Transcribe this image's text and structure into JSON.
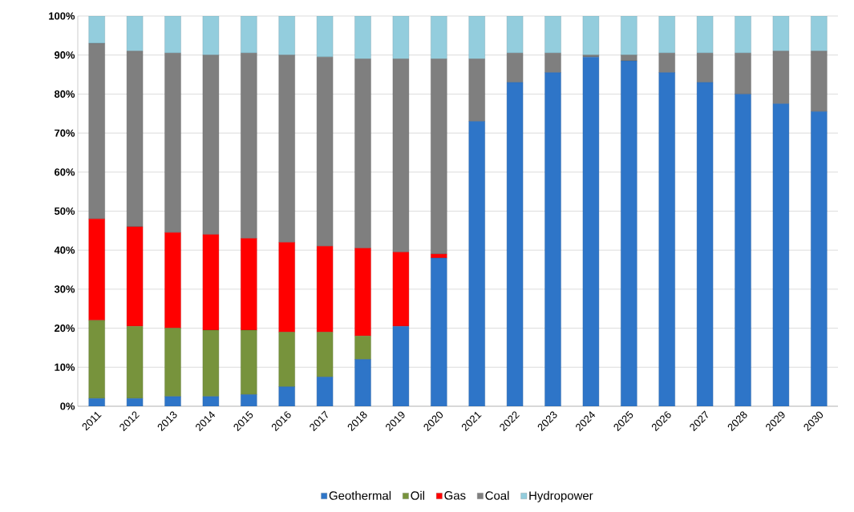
{
  "chart_data": {
    "type": "bar",
    "stacked": true,
    "categories": [
      "2011",
      "2012",
      "2013",
      "2014",
      "2015",
      "2016",
      "2017",
      "2018",
      "2019",
      "2020",
      "2021",
      "2022",
      "2023",
      "2024",
      "2025",
      "2026",
      "2027",
      "2028",
      "2029",
      "2030"
    ],
    "series": [
      {
        "name": "Geothermal",
        "color": "#2e75c8",
        "values": [
          2,
          2,
          2.5,
          2.5,
          3,
          5,
          7.5,
          12,
          20.5,
          38,
          73,
          83,
          85.5,
          89.5,
          88.5,
          85.5,
          83,
          80,
          77.5,
          75.5
        ]
      },
      {
        "name": "Oil",
        "color": "#77933c",
        "values": [
          20,
          18.5,
          17.5,
          17,
          16.5,
          14,
          11.5,
          6,
          0,
          0,
          0,
          0,
          0,
          0,
          0,
          0,
          0,
          0,
          0,
          0
        ]
      },
      {
        "name": "Gas",
        "color": "#ff0000",
        "values": [
          26,
          25.5,
          24.5,
          24.5,
          23.5,
          23,
          22,
          22.5,
          19,
          1,
          0,
          0,
          0,
          0,
          0,
          0,
          0,
          0,
          0,
          0
        ]
      },
      {
        "name": "Coal",
        "color": "#7f7f7f",
        "values": [
          45,
          45,
          46,
          46,
          47.5,
          48,
          48.5,
          48.5,
          49.5,
          50,
          16,
          7.5,
          5,
          0.5,
          1.5,
          5,
          7.5,
          10.5,
          13.5,
          15.5
        ]
      },
      {
        "name": "Hydropower",
        "color": "#93cddd",
        "values": [
          7,
          9,
          9.5,
          10,
          9.5,
          10,
          10.5,
          11,
          11,
          11,
          11,
          9.5,
          9.5,
          10,
          10,
          9.5,
          9.5,
          9.5,
          9,
          9
        ]
      }
    ],
    "ylim": [
      0,
      100
    ],
    "yticks": [
      {
        "value": 0,
        "label": "0%"
      },
      {
        "value": 10,
        "label": "10%"
      },
      {
        "value": 20,
        "label": "20%"
      },
      {
        "value": 30,
        "label": "30%"
      },
      {
        "value": 40,
        "label": "40%"
      },
      {
        "value": 50,
        "label": "50%"
      },
      {
        "value": 60,
        "label": "60%"
      },
      {
        "value": 70,
        "label": "70%"
      },
      {
        "value": 80,
        "label": "80%"
      },
      {
        "value": 90,
        "label": "90%"
      },
      {
        "value": 100,
        "label": "100%"
      }
    ],
    "grid": "y",
    "legend": "bottom"
  }
}
